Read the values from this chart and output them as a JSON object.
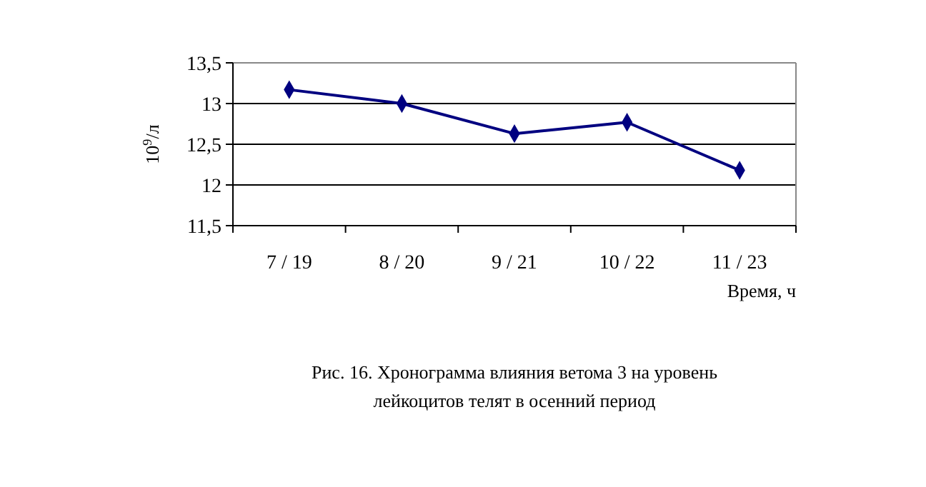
{
  "chart_data": {
    "type": "line",
    "categories": [
      "7 / 19",
      "8 / 20",
      "9 / 21",
      "10 / 22",
      "11 / 23"
    ],
    "series": [
      {
        "color": "#000080",
        "values": [
          13.17,
          13.0,
          12.63,
          12.77,
          12.18
        ]
      }
    ],
    "ylim": [
      11.5,
      13.5
    ],
    "yticks": [
      {
        "value": 11.5,
        "label": "11,5"
      },
      12,
      {
        "value": 12.5,
        "label": "12,5"
      },
      13,
      {
        "value": 13.5,
        "label": "13,5"
      }
    ],
    "ylabel": "10$^{9}$/л",
    "xlabel": "Время, ч",
    "grid": "y",
    "marker": "diamond",
    "line_style": "solid",
    "annotations": [
      "Рис. 16. Хронограмма влияния ветома 3 на уровень лейкоцитов телят в осенний период"
    ]
  }
}
